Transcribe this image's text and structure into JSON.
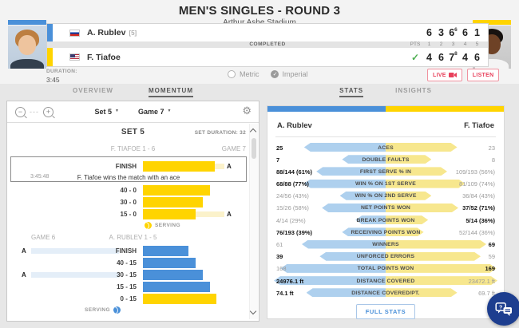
{
  "colors": {
    "blue": "#4a90d9",
    "yellow": "#ffd400",
    "statblue": "#aed0ee",
    "statyellow": "#f7e78e",
    "connblue": "#e4eef8",
    "connyellow": "#fbf2cb",
    "red": "#e8415c",
    "green": "#4caf50",
    "navy": "#1d3e8f"
  },
  "header": {
    "title": "MEN'S SINGLES - ROUND 3",
    "subtitle": "Arthur Ashe Stadium"
  },
  "scoreboard": {
    "status": "COMPLETED",
    "pts_label": "PTS",
    "set_headers": [
      "1",
      "2",
      "3",
      "4",
      "5"
    ],
    "players": [
      {
        "name": "A. Rublev",
        "seed": "[5]",
        "winner_check": "",
        "sets": [
          {
            "v": "6"
          },
          {
            "v": "3"
          },
          {
            "v": "6",
            "sup": "6"
          },
          {
            "v": "6"
          },
          {
            "v": "1"
          }
        ]
      },
      {
        "name": "F. Tiafoe",
        "seed": "",
        "winner_check": "✓",
        "sets": [
          {
            "v": "4"
          },
          {
            "v": "6"
          },
          {
            "v": "7",
            "sup": "8"
          },
          {
            "v": "4"
          },
          {
            "v": "6"
          }
        ]
      }
    ],
    "duration_label": "DURATION:",
    "duration_value": "3:45",
    "units": {
      "metric": "Metric",
      "imperial": "Imperial",
      "selected": "Imperial"
    },
    "live_label": "LIVE",
    "listen_label": "LISTEN"
  },
  "left_panel": {
    "tabs": {
      "overview": "OVERVIEW",
      "momentum": "MOMENTUM"
    },
    "toolbar": {
      "set_selector": "Set 5",
      "game_selector": "Game 7"
    },
    "set_title": "SET 5",
    "set_duration": "SET DURATION: 32",
    "ace_marker": "A",
    "games": [
      {
        "header_left": "",
        "header_center": "F. TIAFOE 1 - 6",
        "header_right": "GAME 7",
        "finish_event": {
          "label": "FINISH",
          "bar": 90,
          "side": "tiafoe",
          "ace": "right",
          "time": "3:45:48",
          "description": "F. Tiafoe wins the match with an ace"
        },
        "rows": [
          {
            "label": "40 - 0",
            "bar": 84,
            "side": "tiafoe",
            "ace": null
          },
          {
            "label": "30 - 0",
            "bar": 75,
            "side": "tiafoe",
            "ace": null
          },
          {
            "label": "15 - 0",
            "bar": 66,
            "side": "tiafoe",
            "ace": "right"
          }
        ],
        "serving_label": "SERVING",
        "server": "tiafoe"
      },
      {
        "header_left": "GAME 6",
        "header_center": "A. RUBLEV 1 - 5",
        "header_right": "",
        "finish_event": null,
        "rows": [
          {
            "label": "FINISH",
            "bar": 57,
            "side": "rublev",
            "ace": "left"
          },
          {
            "label": "40 - 15",
            "bar": 66,
            "side": "rublev",
            "ace": null
          },
          {
            "label": "30 - 15",
            "bar": 75,
            "side": "rublev",
            "ace": "left"
          },
          {
            "label": "15 - 15",
            "bar": 84,
            "side": "rublev",
            "ace": null
          },
          {
            "label": "0 - 15",
            "bar": 92,
            "side": "tiafoe",
            "ace": null
          }
        ],
        "serving_label": "SERVING",
        "server": "rublev"
      }
    ]
  },
  "right_panel": {
    "tabs": {
      "stats": "STATS",
      "insights": "INSIGHTS"
    },
    "player_left": "A. Rublev",
    "player_right": "F. Tiafoe",
    "rows": [
      {
        "label": "ACES",
        "left": "25",
        "right": "23",
        "left_strong": true,
        "right_strong": false,
        "left_pct": 73,
        "right_pct": 64
      },
      {
        "label": "DOUBLE FAULTS",
        "left": "7",
        "right": "8",
        "left_strong": true,
        "right_strong": false,
        "left_pct": 39,
        "right_pct": 41
      },
      {
        "label": "FIRST SERVE % IN",
        "left": "88/144 (61%)",
        "right": "109/193 (56%)",
        "left_strong": true,
        "right_strong": false,
        "left_pct": 62,
        "right_pct": 55
      },
      {
        "label": "WIN % ON 1ST SERVE",
        "left": "68/88 (77%)",
        "right": "81/109 (74%)",
        "left_strong": true,
        "right_strong": false,
        "left_pct": 73,
        "right_pct": 71
      },
      {
        "label": "WIN % ON 2ND SERVE",
        "left": "24/56 (43%)",
        "right": "36/84 (43%)",
        "left_strong": false,
        "right_strong": false,
        "left_pct": 41,
        "right_pct": 41
      },
      {
        "label": "NET POINTS WON",
        "left": "15/26 (58%)",
        "right": "37/52 (71%)",
        "left_strong": false,
        "right_strong": true,
        "left_pct": 57,
        "right_pct": 65
      },
      {
        "label": "BREAK POINTS WON",
        "left": "4/14 (29%)",
        "right": "5/14 (36%)",
        "left_strong": false,
        "right_strong": true,
        "left_pct": 27,
        "right_pct": 38
      },
      {
        "label": "RECEIVING POINTS WON",
        "left": "76/193 (39%)",
        "right": "52/144 (36%)",
        "left_strong": true,
        "right_strong": false,
        "left_pct": 39,
        "right_pct": 34
      },
      {
        "label": "WINNERS",
        "left": "61",
        "right": "69",
        "left_strong": false,
        "right_strong": true,
        "left_pct": 75,
        "right_pct": 90
      },
      {
        "label": "UNFORCED ERRORS",
        "left": "39",
        "right": "59",
        "left_strong": true,
        "right_strong": false,
        "left_pct": 59,
        "right_pct": 85
      },
      {
        "label": "TOTAL POINTS WON",
        "left": "168",
        "right": "169",
        "left_strong": false,
        "right_strong": true,
        "left_pct": 94,
        "right_pct": 99
      },
      {
        "label": "DISTANCE COVERED",
        "left": "24976.1 ft",
        "right": "23472.1 ft",
        "left_strong": true,
        "right_strong": false,
        "left_pct": 100,
        "right_pct": 100
      },
      {
        "label": "DISTANCE COVERED/PT.",
        "left": "74.1 ft",
        "right": "69.7 ft",
        "left_strong": true,
        "right_strong": false,
        "left_pct": 71,
        "right_pct": 64
      }
    ],
    "full_stats_label": "FULL STATS"
  }
}
